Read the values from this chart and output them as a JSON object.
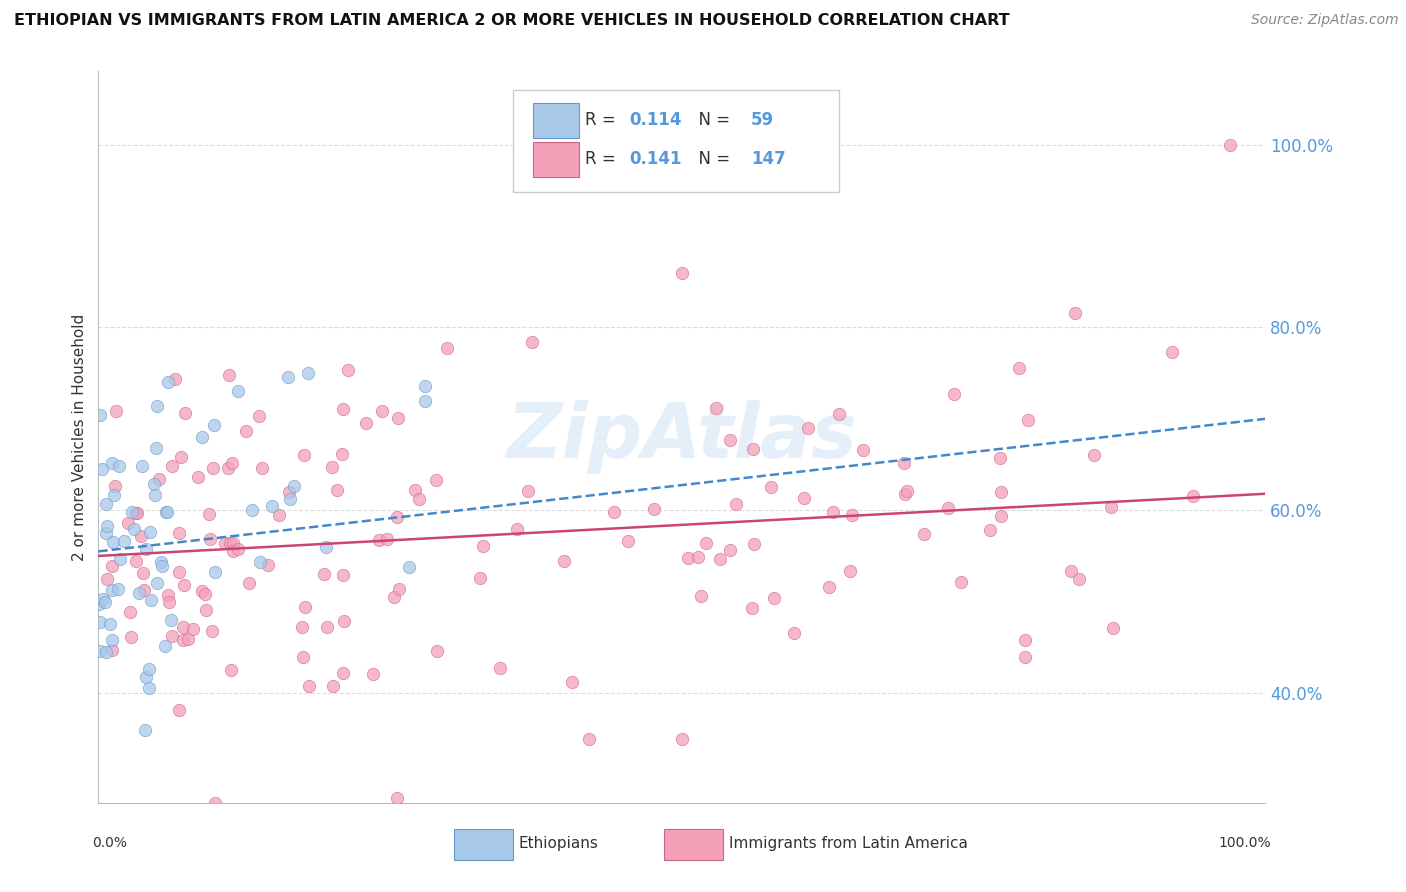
{
  "title": "ETHIOPIAN VS IMMIGRANTS FROM LATIN AMERICA 2 OR MORE VEHICLES IN HOUSEHOLD CORRELATION CHART",
  "source": "Source: ZipAtlas.com",
  "ylabel": "2 or more Vehicles in Household",
  "ytick_vals": [
    0.4,
    0.6,
    0.8,
    1.0
  ],
  "ytick_labels": [
    "40.0%",
    "60.0%",
    "80.0%",
    "100.0%"
  ],
  "xlim": [
    0.0,
    1.0
  ],
  "ylim": [
    0.28,
    1.08
  ],
  "color_ethiopian": "#A8C8E8",
  "color_latin": "#F4A0B8",
  "edge_color_ethiopian": "#6699CC",
  "edge_color_latin": "#CC6688",
  "trendline_color_ethiopian": "#4488CC",
  "trendline_color_latin": "#CC4477",
  "watermark": "ZipAtlas",
  "eth_trendline": [
    0.555,
    0.7
  ],
  "lat_trendline": [
    0.555,
    0.62
  ],
  "legend_r1": "0.114",
  "legend_n1": "59",
  "legend_r2": "0.141",
  "legend_n2": "147",
  "ytick_color": "#5599DD",
  "grid_color": "#DDDDDD",
  "title_color": "#111111",
  "source_color": "#888888",
  "ylabel_color": "#333333"
}
